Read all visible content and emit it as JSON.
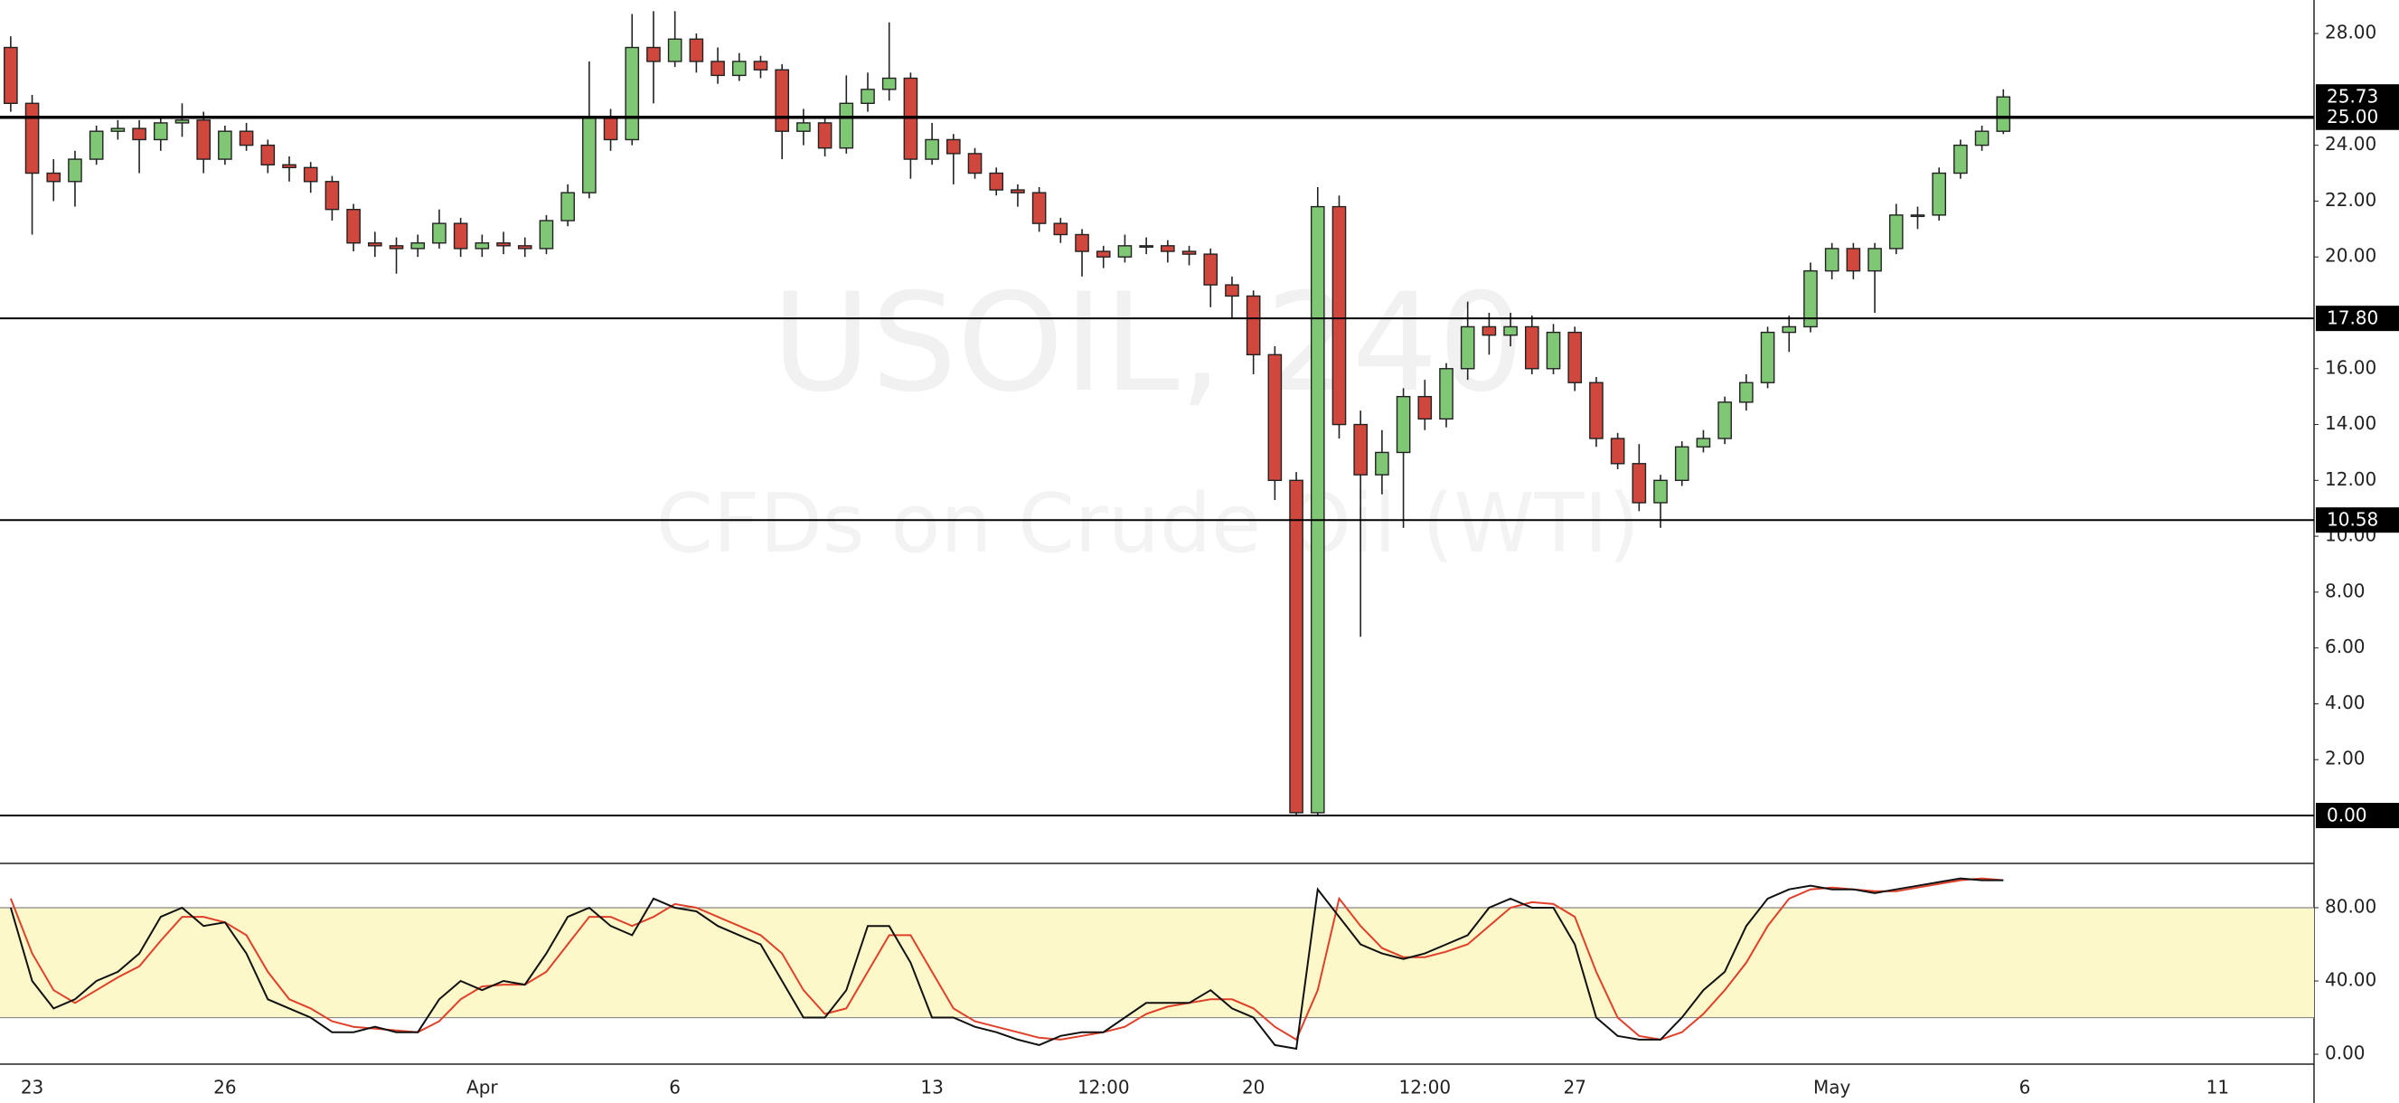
{
  "chart_data": [
    {
      "type": "candlestick",
      "watermark": "USOIL, 240",
      "subtitle": "CFDs on Crude Oil (WTI)",
      "categories": [
        null,
        "23",
        null,
        null,
        null,
        null,
        null,
        null,
        null,
        null,
        "26",
        null,
        null,
        null,
        null,
        null,
        null,
        null,
        null,
        null,
        null,
        null,
        "Apr",
        null,
        null,
        null,
        null,
        null,
        null,
        null,
        null,
        "6",
        null,
        null,
        null,
        null,
        null,
        null,
        null,
        null,
        null,
        null,
        null,
        "13",
        null,
        null,
        null,
        null,
        null,
        null,
        null,
        "12:00",
        null,
        null,
        null,
        null,
        null,
        null,
        "20",
        null,
        null,
        null,
        null,
        null,
        null,
        null,
        "12:00",
        null,
        null,
        null,
        null,
        null,
        null,
        "27",
        null,
        null,
        null,
        null,
        null,
        null,
        null,
        null,
        null,
        null,
        null,
        "May",
        null,
        null,
        null,
        null,
        null,
        null,
        null,
        null,
        "6",
        null,
        null,
        null,
        null,
        null,
        null,
        null,
        null,
        "11",
        null,
        null,
        null,
        null
      ],
      "open": [
        27.5,
        25.5,
        23.0,
        22.7,
        23.5,
        24.5,
        24.6,
        24.2,
        24.8,
        24.9,
        23.5,
        24.5,
        24.0,
        23.3,
        23.2,
        22.7,
        21.7,
        20.5,
        20.4,
        20.3,
        20.5,
        21.2,
        20.3,
        20.5,
        20.4,
        20.3,
        21.3,
        22.3,
        25.0,
        24.2,
        27.5,
        27.0,
        27.8,
        27.0,
        26.5,
        27.0,
        26.7,
        24.5,
        24.8,
        23.9,
        25.5,
        26.0,
        26.4,
        23.5,
        24.2,
        23.7,
        23.0,
        22.4,
        22.3,
        21.2,
        20.8,
        20.2,
        20.0,
        20.4,
        20.4,
        20.2,
        20.1,
        19.0,
        18.6,
        16.5,
        12.0,
        0.1,
        21.8,
        14.0,
        12.2,
        13.0,
        15.0,
        14.2,
        16.0,
        17.5,
        17.2,
        17.5,
        16.0,
        17.3,
        15.5,
        13.5,
        12.6,
        11.2,
        12.0,
        13.2,
        13.5,
        14.8,
        15.5,
        17.3,
        17.5,
        19.5,
        20.3,
        19.5,
        20.3,
        21.5,
        21.5,
        23.0,
        24.0,
        24.5,
        null,
        null,
        null,
        null,
        null,
        null,
        null,
        null,
        null,
        null,
        null,
        null,
        null,
        null
      ],
      "high": [
        27.9,
        25.8,
        23.5,
        23.8,
        24.7,
        24.9,
        24.9,
        25.0,
        25.5,
        25.2,
        24.7,
        24.8,
        24.2,
        23.6,
        23.4,
        22.9,
        21.9,
        20.9,
        20.7,
        20.8,
        21.7,
        21.4,
        20.8,
        20.9,
        20.7,
        21.5,
        22.6,
        27.0,
        25.3,
        28.7,
        28.8,
        28.8,
        28.0,
        27.5,
        27.3,
        27.2,
        26.9,
        25.3,
        25.0,
        26.5,
        26.6,
        28.4,
        26.6,
        24.8,
        24.4,
        23.9,
        23.2,
        22.6,
        22.5,
        21.4,
        21.0,
        20.4,
        20.8,
        20.7,
        20.6,
        20.4,
        20.3,
        19.3,
        18.8,
        16.8,
        12.3,
        22.5,
        22.2,
        14.5,
        13.8,
        15.3,
        15.6,
        16.2,
        18.4,
        18.0,
        18.0,
        17.9,
        17.6,
        17.5,
        15.7,
        13.7,
        13.3,
        12.2,
        13.4,
        13.8,
        15.0,
        15.8,
        17.5,
        17.9,
        19.8,
        20.5,
        20.5,
        20.5,
        21.9,
        21.8,
        23.2,
        24.2,
        24.7,
        26.0,
        null,
        null,
        null,
        null,
        null,
        null,
        null,
        null,
        null,
        null,
        null,
        null,
        null,
        null
      ],
      "low": [
        25.2,
        20.8,
        22.0,
        21.8,
        23.3,
        24.2,
        23.0,
        23.8,
        24.3,
        23.0,
        23.3,
        23.8,
        23.0,
        22.7,
        22.3,
        21.3,
        20.2,
        20.0,
        19.4,
        20.0,
        20.3,
        20.0,
        20.0,
        20.1,
        20.0,
        20.1,
        21.1,
        22.1,
        23.8,
        24.0,
        25.5,
        26.8,
        26.6,
        26.2,
        26.3,
        26.4,
        23.5,
        24.0,
        23.6,
        23.7,
        25.2,
        25.6,
        22.8,
        23.3,
        22.6,
        22.8,
        22.2,
        21.8,
        20.9,
        20.5,
        19.3,
        19.6,
        19.8,
        20.1,
        19.8,
        19.7,
        18.2,
        17.8,
        15.8,
        11.3,
        0.0,
        0.0,
        13.5,
        6.4,
        11.5,
        10.3,
        13.8,
        13.9,
        15.6,
        16.5,
        16.8,
        15.8,
        15.8,
        15.2,
        13.2,
        12.4,
        10.9,
        10.3,
        11.8,
        13.0,
        13.3,
        14.5,
        15.3,
        16.6,
        17.3,
        19.2,
        19.2,
        18.0,
        20.1,
        21.0,
        21.3,
        22.8,
        23.8,
        24.4,
        null,
        null,
        null,
        null,
        null,
        null,
        null,
        null,
        null,
        null,
        null,
        null,
        null,
        null
      ],
      "close": [
        25.5,
        23.0,
        22.7,
        23.5,
        24.5,
        24.6,
        24.2,
        24.8,
        24.9,
        23.5,
        24.5,
        24.0,
        23.3,
        23.2,
        22.7,
        21.7,
        20.5,
        20.4,
        20.3,
        20.5,
        21.2,
        20.3,
        20.5,
        20.4,
        20.3,
        21.3,
        22.3,
        25.0,
        24.2,
        27.5,
        27.0,
        27.8,
        27.0,
        26.5,
        27.0,
        26.7,
        24.5,
        24.8,
        23.9,
        25.5,
        26.0,
        26.4,
        23.5,
        24.2,
        23.7,
        23.0,
        22.4,
        22.3,
        21.2,
        20.8,
        20.2,
        20.0,
        20.4,
        20.4,
        20.2,
        20.1,
        19.0,
        18.6,
        16.5,
        12.0,
        0.1,
        21.8,
        14.0,
        12.2,
        13.0,
        15.0,
        14.2,
        16.0,
        17.5,
        17.2,
        17.5,
        16.0,
        17.3,
        15.5,
        13.5,
        12.6,
        11.2,
        12.0,
        13.2,
        13.5,
        14.8,
        15.5,
        17.3,
        17.5,
        19.5,
        20.3,
        19.5,
        20.3,
        21.5,
        21.5,
        23.0,
        24.0,
        24.5,
        25.73,
        null,
        null,
        null,
        null,
        null,
        null,
        null,
        null,
        null,
        null,
        null,
        null,
        null,
        null
      ],
      "up_color": "#7fc675",
      "down_color": "#d0473d",
      "ylim": [
        -1.65,
        29.2
      ],
      "yticks": [
        {
          "value": 2,
          "label": "2.00"
        },
        {
          "value": 4,
          "label": "4.00"
        },
        {
          "value": 6,
          "label": "6.00"
        },
        {
          "value": 8,
          "label": "8.00"
        },
        {
          "value": 10,
          "label": "10.00"
        },
        {
          "value": 12,
          "label": "12.00"
        },
        {
          "value": 14,
          "label": "14.00"
        },
        {
          "value": 16,
          "label": "16.00"
        },
        {
          "value": 20,
          "label": "20.00"
        },
        {
          "value": 22,
          "label": "22.00"
        },
        {
          "value": 24,
          "label": "24.00"
        },
        {
          "value": 28,
          "label": "28.00"
        }
      ],
      "hlines": [
        {
          "value": 25,
          "label": "25.00"
        },
        {
          "value": 17.8,
          "label": "17.80"
        },
        {
          "value": 10.58,
          "label": "10.58"
        },
        {
          "value": 0,
          "label": "0.00"
        }
      ],
      "last_price": {
        "value": 25.73,
        "label": "25.73"
      }
    },
    {
      "type": "line",
      "series": [
        {
          "color": "#111111",
          "values": [
            80,
            40,
            25,
            30,
            40,
            45,
            55,
            75,
            80,
            70,
            72,
            55,
            30,
            25,
            20,
            12,
            12,
            15,
            12,
            12,
            30,
            40,
            35,
            40,
            38,
            55,
            75,
            80,
            70,
            65,
            85,
            80,
            78,
            70,
            65,
            60,
            40,
            20,
            20,
            35,
            70,
            70,
            50,
            20,
            20,
            15,
            12,
            8,
            5,
            10,
            12,
            12,
            20,
            28,
            28,
            28,
            35,
            25,
            20,
            5,
            3,
            90,
            75,
            60,
            55,
            52,
            55,
            60,
            65,
            80,
            85,
            80,
            80,
            60,
            20,
            10,
            8,
            8,
            20,
            35,
            45,
            70,
            85,
            90,
            92,
            90,
            90,
            88,
            90,
            92,
            94,
            96,
            95,
            95,
            null,
            null,
            null,
            null,
            null,
            null,
            null,
            null,
            null,
            null,
            null,
            null,
            null,
            null
          ]
        },
        {
          "color": "#e0402a",
          "values": [
            85,
            55,
            35,
            28,
            35,
            42,
            48,
            62,
            75,
            75,
            72,
            65,
            45,
            30,
            25,
            18,
            15,
            14,
            13,
            12,
            18,
            30,
            37,
            38,
            38,
            45,
            60,
            75,
            75,
            70,
            75,
            82,
            80,
            75,
            70,
            65,
            55,
            35,
            22,
            25,
            45,
            65,
            65,
            45,
            25,
            18,
            15,
            12,
            9,
            8,
            10,
            12,
            15,
            22,
            26,
            28,
            30,
            30,
            25,
            15,
            8,
            35,
            85,
            70,
            58,
            53,
            53,
            56,
            60,
            70,
            80,
            83,
            82,
            75,
            45,
            20,
            10,
            8,
            12,
            22,
            35,
            50,
            70,
            85,
            90,
            91,
            90,
            89,
            89,
            91,
            93,
            95,
            96,
            95,
            null,
            null,
            null,
            null,
            null,
            null,
            null,
            null,
            null,
            null,
            null,
            null,
            null,
            null
          ]
        }
      ],
      "band": [
        20,
        80
      ],
      "band_color": "#fdf8c9",
      "ylim": [
        -5.4,
        102.7
      ],
      "yticks": [
        {
          "value": 0,
          "label": "0.00"
        },
        {
          "value": 40,
          "label": "40.00"
        },
        {
          "value": 80,
          "label": "80.00"
        }
      ]
    }
  ]
}
